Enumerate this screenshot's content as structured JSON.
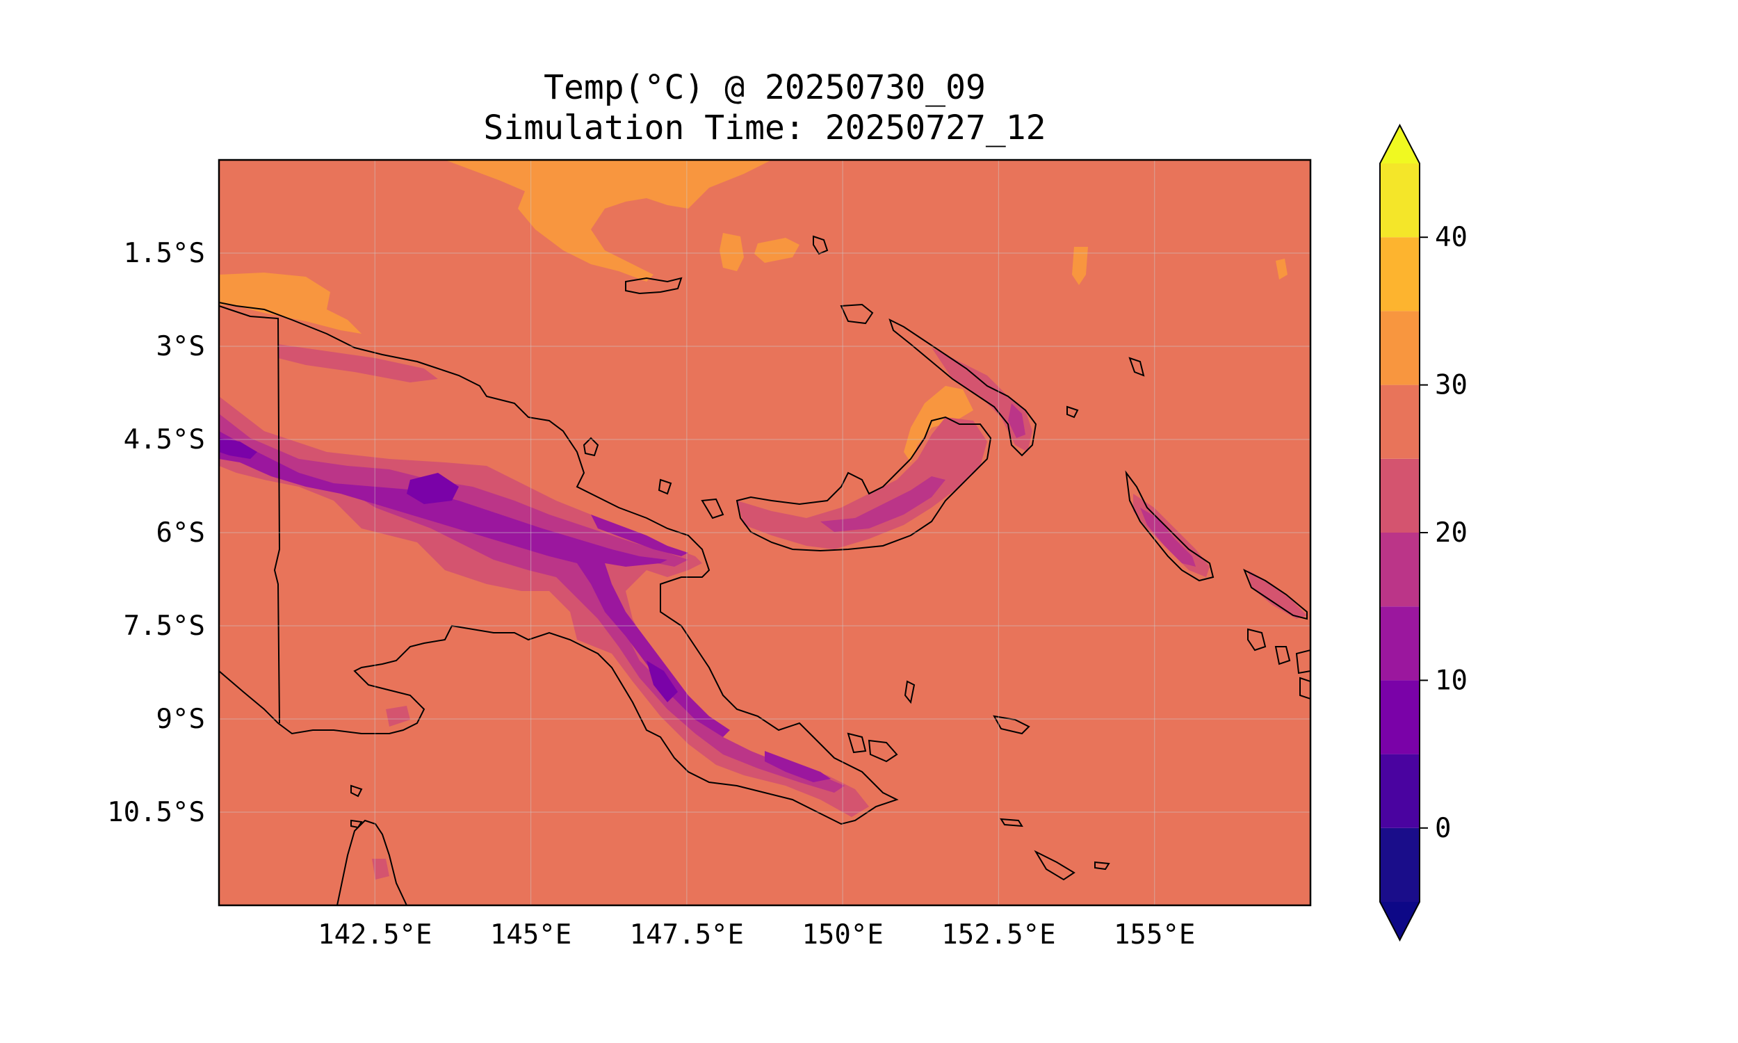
{
  "title_line1": "Temp(°C) @ 20250730_09",
  "title_line2": "Simulation Time: 20250727_12",
  "chart_data": {
    "type": "heatmap",
    "variable": "Temp(°C)",
    "valid_time": "20250730_09",
    "simulation_time": "20250727_12",
    "lon_range": [
      140,
      157.5
    ],
    "lat_range": [
      -12,
      0
    ],
    "x_ticks": [
      {
        "value": 142.5,
        "label": "142.5°E"
      },
      {
        "value": 145,
        "label": "145°E"
      },
      {
        "value": 147.5,
        "label": "147.5°E"
      },
      {
        "value": 150,
        "label": "150°E"
      },
      {
        "value": 152.5,
        "label": "152.5°E"
      },
      {
        "value": 155,
        "label": "155°E"
      }
    ],
    "y_ticks": [
      {
        "value": -1.5,
        "label": "1.5°S"
      },
      {
        "value": -3,
        "label": "3°S"
      },
      {
        "value": -4.5,
        "label": "4.5°S"
      },
      {
        "value": -6,
        "label": "6°S"
      },
      {
        "value": -7.5,
        "label": "7.5°S"
      },
      {
        "value": -9,
        "label": "9°S"
      },
      {
        "value": -10.5,
        "label": "10.5°S"
      }
    ],
    "colorbar": {
      "levels": [
        -5,
        0,
        5,
        10,
        15,
        20,
        25,
        30,
        35,
        40,
        45
      ],
      "colors": [
        "#1a0d8a",
        "#4a03a0",
        "#7a02a8",
        "#9b179e",
        "#bb3588",
        "#d4546f",
        "#e8745a",
        "#f8963f",
        "#fdb42f",
        "#f4e629"
      ],
      "under_color": "#0d0887",
      "over_color": "#f0f921",
      "extend": "both",
      "ticks": [
        {
          "value": 0,
          "label": "0"
        },
        {
          "value": 10,
          "label": "10"
        },
        {
          "value": 20,
          "label": "20"
        },
        {
          "value": 30,
          "label": "30"
        },
        {
          "value": 40,
          "label": "40"
        }
      ]
    },
    "grid": true
  }
}
